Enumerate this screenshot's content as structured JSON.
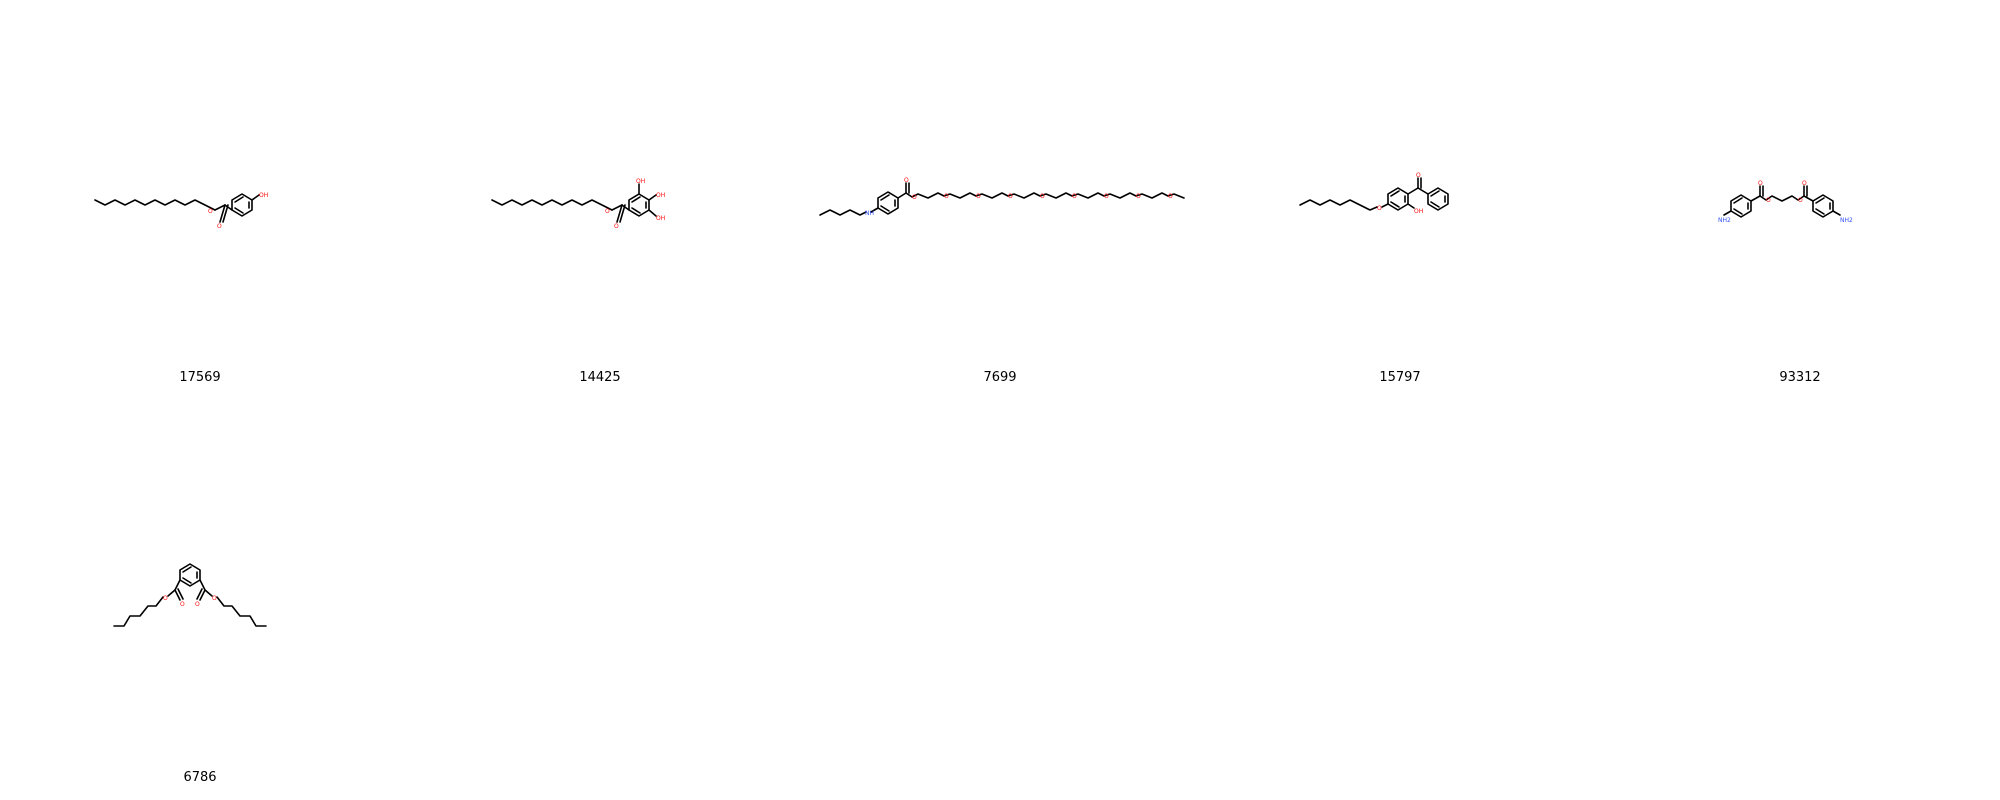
{
  "molecules": [
    {
      "id": "17569",
      "name": "molecule-17569"
    },
    {
      "id": "14425",
      "name": "molecule-14425"
    },
    {
      "id": "7699",
      "name": "molecule-7699"
    },
    {
      "id": "15797",
      "name": "molecule-15797"
    },
    {
      "id": "93312",
      "name": "molecule-93312"
    },
    {
      "id": "6786",
      "name": "molecule-6786"
    }
  ],
  "atom_labels": {
    "hydroxyl": "OH",
    "amine": "NH",
    "amine2": "NH2",
    "oxygen": "O"
  },
  "colors": {
    "bond": "#000000",
    "oxygen": "#ff0d0d",
    "nitrogen": "#3050f8",
    "background": "#ffffff"
  }
}
